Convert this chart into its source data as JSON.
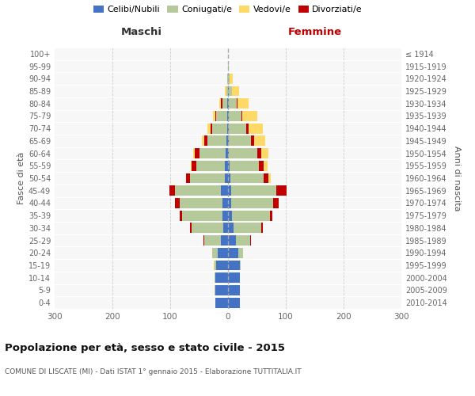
{
  "age_groups": [
    "0-4",
    "5-9",
    "10-14",
    "15-19",
    "20-24",
    "25-29",
    "30-34",
    "35-39",
    "40-44",
    "45-49",
    "50-54",
    "55-59",
    "60-64",
    "65-69",
    "70-74",
    "75-79",
    "80-84",
    "85-89",
    "90-94",
    "95-99",
    "100+"
  ],
  "birth_years": [
    "2010-2014",
    "2005-2009",
    "2000-2004",
    "1995-1999",
    "1990-1994",
    "1985-1989",
    "1980-1984",
    "1975-1979",
    "1970-1974",
    "1965-1969",
    "1960-1964",
    "1955-1959",
    "1950-1954",
    "1945-1949",
    "1940-1944",
    "1935-1939",
    "1930-1934",
    "1925-1929",
    "1920-1924",
    "1915-1919",
    "≤ 1914"
  ],
  "colors": {
    "celibe": "#4472c4",
    "coniugato": "#b5c99a",
    "vedovo": "#ffd966",
    "divorziato": "#c00000"
  },
  "maschi": {
    "celibe": [
      22,
      22,
      22,
      21,
      18,
      13,
      8,
      9,
      9,
      12,
      6,
      5,
      4,
      3,
      2,
      2,
      1,
      0,
      0,
      0,
      0
    ],
    "coniugato": [
      0,
      1,
      1,
      2,
      10,
      28,
      55,
      70,
      75,
      80,
      60,
      50,
      45,
      33,
      25,
      18,
      9,
      3,
      1,
      0,
      0
    ],
    "vedovo": [
      0,
      0,
      0,
      1,
      0,
      1,
      0,
      0,
      0,
      0,
      1,
      2,
      3,
      4,
      5,
      4,
      3,
      2,
      1,
      0,
      0
    ],
    "divorziato": [
      0,
      0,
      0,
      0,
      0,
      1,
      3,
      5,
      8,
      10,
      6,
      8,
      8,
      5,
      3,
      2,
      2,
      0,
      0,
      0,
      0
    ]
  },
  "femmine": {
    "nubile": [
      21,
      20,
      20,
      20,
      18,
      14,
      9,
      7,
      6,
      5,
      4,
      3,
      2,
      2,
      2,
      1,
      1,
      1,
      0,
      0,
      0
    ],
    "coniugata": [
      0,
      1,
      1,
      2,
      8,
      25,
      48,
      65,
      72,
      78,
      58,
      50,
      48,
      38,
      30,
      22,
      14,
      6,
      3,
      1,
      0
    ],
    "vedova": [
      0,
      0,
      0,
      0,
      0,
      0,
      0,
      0,
      0,
      1,
      4,
      8,
      12,
      20,
      25,
      25,
      20,
      12,
      5,
      1,
      0
    ],
    "divorziata": [
      0,
      0,
      0,
      0,
      0,
      1,
      3,
      5,
      9,
      18,
      8,
      8,
      8,
      5,
      3,
      2,
      1,
      0,
      0,
      0,
      0
    ]
  },
  "title": "Popolazione per età, sesso e stato civile - 2015",
  "subtitle": "COMUNE DI LISCATE (MI) - Dati ISTAT 1° gennaio 2015 - Elaborazione TUTTITALIA.IT",
  "xlabel_left": "Maschi",
  "xlabel_right": "Femmine",
  "ylabel_left": "Fasce di età",
  "ylabel_right": "Anni di nascita",
  "xlim": 300,
  "legend_labels": [
    "Celibi/Nubili",
    "Coniugati/e",
    "Vedovi/e",
    "Divorziati/e"
  ],
  "background_color": "#ffffff",
  "grid_color": "#cccccc"
}
